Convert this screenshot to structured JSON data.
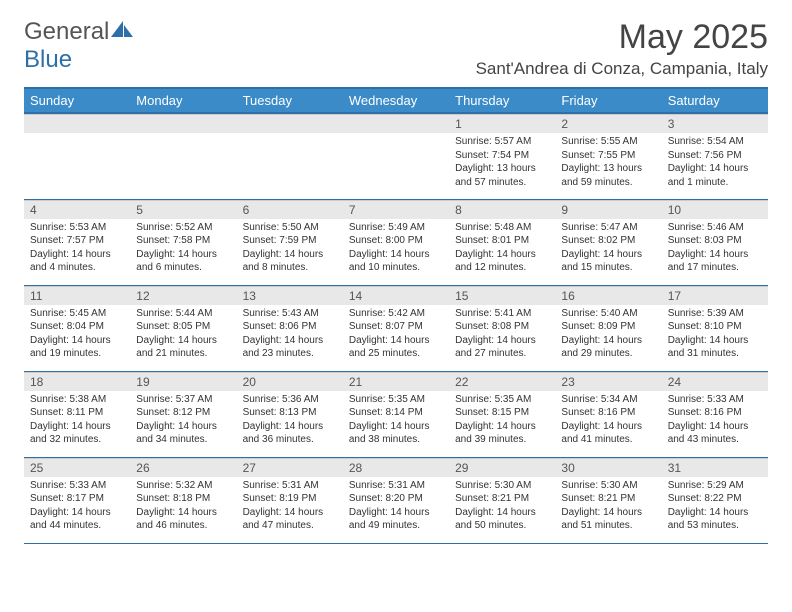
{
  "logo": {
    "left": "General",
    "right": "Blue"
  },
  "title": "May 2025",
  "location": "Sant'Andrea di Conza, Campania, Italy",
  "colors": {
    "header_bg": "#3b8bc9",
    "header_border": "#2f6fa8",
    "daynum_bg": "#e8e8e8",
    "text": "#333333"
  },
  "weekdays": [
    "Sunday",
    "Monday",
    "Tuesday",
    "Wednesday",
    "Thursday",
    "Friday",
    "Saturday"
  ],
  "weeks": [
    [
      null,
      null,
      null,
      null,
      {
        "n": "1",
        "sr": "Sunrise: 5:57 AM",
        "ss": "Sunset: 7:54 PM",
        "dl": "Daylight: 13 hours and 57 minutes."
      },
      {
        "n": "2",
        "sr": "Sunrise: 5:55 AM",
        "ss": "Sunset: 7:55 PM",
        "dl": "Daylight: 13 hours and 59 minutes."
      },
      {
        "n": "3",
        "sr": "Sunrise: 5:54 AM",
        "ss": "Sunset: 7:56 PM",
        "dl": "Daylight: 14 hours and 1 minute."
      }
    ],
    [
      {
        "n": "4",
        "sr": "Sunrise: 5:53 AM",
        "ss": "Sunset: 7:57 PM",
        "dl": "Daylight: 14 hours and 4 minutes."
      },
      {
        "n": "5",
        "sr": "Sunrise: 5:52 AM",
        "ss": "Sunset: 7:58 PM",
        "dl": "Daylight: 14 hours and 6 minutes."
      },
      {
        "n": "6",
        "sr": "Sunrise: 5:50 AM",
        "ss": "Sunset: 7:59 PM",
        "dl": "Daylight: 14 hours and 8 minutes."
      },
      {
        "n": "7",
        "sr": "Sunrise: 5:49 AM",
        "ss": "Sunset: 8:00 PM",
        "dl": "Daylight: 14 hours and 10 minutes."
      },
      {
        "n": "8",
        "sr": "Sunrise: 5:48 AM",
        "ss": "Sunset: 8:01 PM",
        "dl": "Daylight: 14 hours and 12 minutes."
      },
      {
        "n": "9",
        "sr": "Sunrise: 5:47 AM",
        "ss": "Sunset: 8:02 PM",
        "dl": "Daylight: 14 hours and 15 minutes."
      },
      {
        "n": "10",
        "sr": "Sunrise: 5:46 AM",
        "ss": "Sunset: 8:03 PM",
        "dl": "Daylight: 14 hours and 17 minutes."
      }
    ],
    [
      {
        "n": "11",
        "sr": "Sunrise: 5:45 AM",
        "ss": "Sunset: 8:04 PM",
        "dl": "Daylight: 14 hours and 19 minutes."
      },
      {
        "n": "12",
        "sr": "Sunrise: 5:44 AM",
        "ss": "Sunset: 8:05 PM",
        "dl": "Daylight: 14 hours and 21 minutes."
      },
      {
        "n": "13",
        "sr": "Sunrise: 5:43 AM",
        "ss": "Sunset: 8:06 PM",
        "dl": "Daylight: 14 hours and 23 minutes."
      },
      {
        "n": "14",
        "sr": "Sunrise: 5:42 AM",
        "ss": "Sunset: 8:07 PM",
        "dl": "Daylight: 14 hours and 25 minutes."
      },
      {
        "n": "15",
        "sr": "Sunrise: 5:41 AM",
        "ss": "Sunset: 8:08 PM",
        "dl": "Daylight: 14 hours and 27 minutes."
      },
      {
        "n": "16",
        "sr": "Sunrise: 5:40 AM",
        "ss": "Sunset: 8:09 PM",
        "dl": "Daylight: 14 hours and 29 minutes."
      },
      {
        "n": "17",
        "sr": "Sunrise: 5:39 AM",
        "ss": "Sunset: 8:10 PM",
        "dl": "Daylight: 14 hours and 31 minutes."
      }
    ],
    [
      {
        "n": "18",
        "sr": "Sunrise: 5:38 AM",
        "ss": "Sunset: 8:11 PM",
        "dl": "Daylight: 14 hours and 32 minutes."
      },
      {
        "n": "19",
        "sr": "Sunrise: 5:37 AM",
        "ss": "Sunset: 8:12 PM",
        "dl": "Daylight: 14 hours and 34 minutes."
      },
      {
        "n": "20",
        "sr": "Sunrise: 5:36 AM",
        "ss": "Sunset: 8:13 PM",
        "dl": "Daylight: 14 hours and 36 minutes."
      },
      {
        "n": "21",
        "sr": "Sunrise: 5:35 AM",
        "ss": "Sunset: 8:14 PM",
        "dl": "Daylight: 14 hours and 38 minutes."
      },
      {
        "n": "22",
        "sr": "Sunrise: 5:35 AM",
        "ss": "Sunset: 8:15 PM",
        "dl": "Daylight: 14 hours and 39 minutes."
      },
      {
        "n": "23",
        "sr": "Sunrise: 5:34 AM",
        "ss": "Sunset: 8:16 PM",
        "dl": "Daylight: 14 hours and 41 minutes."
      },
      {
        "n": "24",
        "sr": "Sunrise: 5:33 AM",
        "ss": "Sunset: 8:16 PM",
        "dl": "Daylight: 14 hours and 43 minutes."
      }
    ],
    [
      {
        "n": "25",
        "sr": "Sunrise: 5:33 AM",
        "ss": "Sunset: 8:17 PM",
        "dl": "Daylight: 14 hours and 44 minutes."
      },
      {
        "n": "26",
        "sr": "Sunrise: 5:32 AM",
        "ss": "Sunset: 8:18 PM",
        "dl": "Daylight: 14 hours and 46 minutes."
      },
      {
        "n": "27",
        "sr": "Sunrise: 5:31 AM",
        "ss": "Sunset: 8:19 PM",
        "dl": "Daylight: 14 hours and 47 minutes."
      },
      {
        "n": "28",
        "sr": "Sunrise: 5:31 AM",
        "ss": "Sunset: 8:20 PM",
        "dl": "Daylight: 14 hours and 49 minutes."
      },
      {
        "n": "29",
        "sr": "Sunrise: 5:30 AM",
        "ss": "Sunset: 8:21 PM",
        "dl": "Daylight: 14 hours and 50 minutes."
      },
      {
        "n": "30",
        "sr": "Sunrise: 5:30 AM",
        "ss": "Sunset: 8:21 PM",
        "dl": "Daylight: 14 hours and 51 minutes."
      },
      {
        "n": "31",
        "sr": "Sunrise: 5:29 AM",
        "ss": "Sunset: 8:22 PM",
        "dl": "Daylight: 14 hours and 53 minutes."
      }
    ]
  ]
}
